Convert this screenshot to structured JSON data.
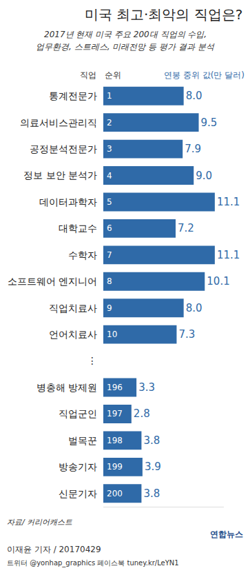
{
  "chart_data": {
    "type": "bar",
    "orientation": "horizontal",
    "title": "미국 최고·최악의 직업은?",
    "subtitle": [
      "2017년 현재 미국 주요 200대 직업의 수입,",
      "업무환경, 스트레스, 미래전망 등 평가 결과 분석"
    ],
    "category_header": "직업",
    "rank_header": "순위",
    "value_header": "연봉 중위 값(만 달러)",
    "categories": [
      "통계전문가",
      "의료서비스관리직",
      "공정분석전문가",
      "정보 보안 분석가",
      "데이터과학자",
      "대학교수",
      "수학자",
      "소프트웨어 엔지니어",
      "직업치료사",
      "언어치료사",
      "⋮",
      "병충해 방제원",
      "직업군인",
      "벌목꾼",
      "방송기자",
      "신문기자"
    ],
    "ranks": [
      1,
      2,
      3,
      4,
      5,
      6,
      7,
      8,
      9,
      10,
      null,
      196,
      197,
      198,
      199,
      200
    ],
    "values": [
      8.0,
      9.5,
      7.9,
      9.0,
      11.1,
      7.2,
      11.1,
      10.1,
      8.0,
      7.3,
      null,
      3.3,
      2.8,
      3.8,
      3.9,
      3.8
    ],
    "value_labels": [
      "8.0",
      "9.5",
      "7.9",
      "9.0",
      "11.1",
      "7.2",
      "11.1",
      "10.1",
      "8.0",
      "7.3",
      null,
      "3.3",
      "2.8",
      "3.8",
      "3.9",
      "3.8"
    ],
    "color": "#2f6aa8",
    "xlim": [
      0,
      12
    ],
    "grid": false,
    "data_labels": true,
    "tick_labels": "y",
    "source": "자료/ 커리어캐스트",
    "credit": [
      "이재윤 기자 / 20170429",
      "트위터 @yonhap_graphics 페이스북 tuney.kr/LeYN1"
    ],
    "logo": "연합뉴스"
  }
}
